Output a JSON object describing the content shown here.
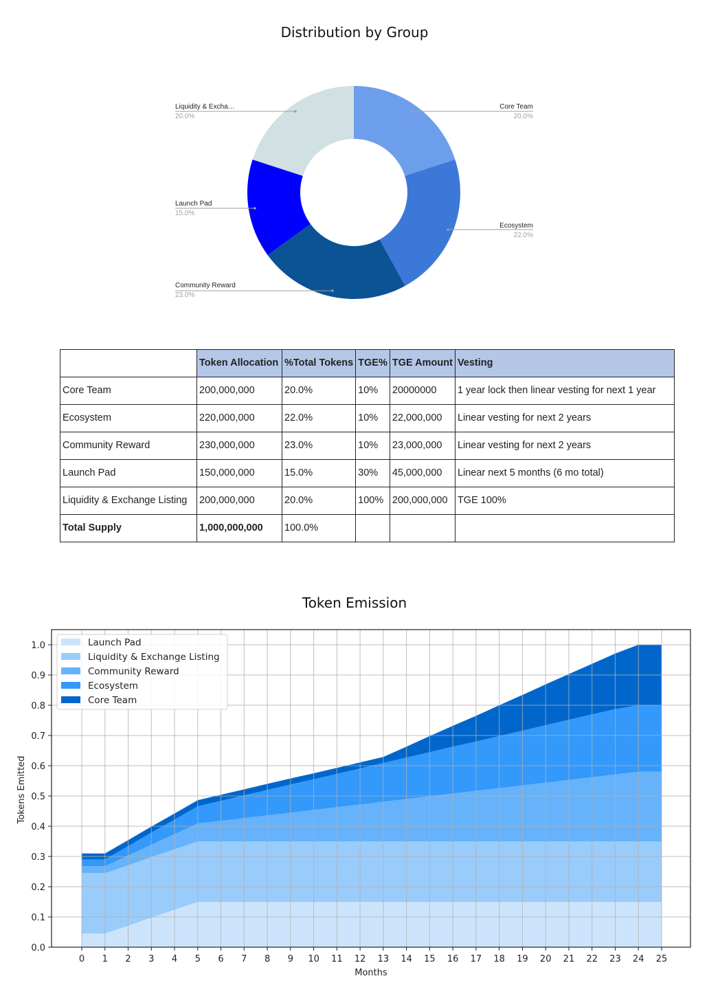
{
  "pie": {
    "title": "Distribution by Group"
  },
  "table": {
    "headers": [
      "",
      "Token Allocation",
      "%Total Tokens",
      "TGE%",
      "TGE Amount",
      "Vesting"
    ],
    "rows": [
      [
        "Core Team",
        "200,000,000",
        "20.0%",
        "10%",
        "20000000",
        "1 year lock then linear vesting for next 1 year"
      ],
      [
        "Ecosystem",
        "220,000,000",
        "22.0%",
        "10%",
        "22,000,000",
        "Linear vesting for next 2 years"
      ],
      [
        "Community Reward",
        "230,000,000",
        "23.0%",
        "10%",
        "23,000,000",
        "Linear vesting for next 2 years"
      ],
      [
        "Launch Pad",
        "150,000,000",
        "15.0%",
        "30%",
        "45,000,000",
        "Linear next 5 months (6 mo total)"
      ],
      [
        "Liquidity & Exchange Listing",
        "200,000,000",
        "20.0%",
        "100%",
        "200,000,000",
        "TGE 100%"
      ],
      [
        "Total Supply",
        "1,000,000,000",
        "100.0%",
        "",
        "",
        ""
      ]
    ]
  },
  "emission": {
    "title": "Token Emission"
  },
  "chart_data": [
    {
      "type": "pie",
      "title": "Distribution by Group",
      "donut": true,
      "categories": [
        "Core Team",
        "Ecosystem",
        "Community Reward",
        "Launch Pad",
        "Liquidity & Exchange Listing"
      ],
      "display_labels": [
        "Core Team",
        "Ecosystem",
        "Community Reward",
        "Launch Pad",
        "Liquidity & Excha…"
      ],
      "values": [
        20.0,
        22.0,
        23.0,
        15.0,
        20.0
      ],
      "value_labels": [
        "20.0%",
        "22.0%",
        "23.0%",
        "15.0%",
        "20.0%"
      ],
      "colors": [
        "#6d9eeb",
        "#3c78d8",
        "#0b5394",
        "#0000ff",
        "#d0e0e3"
      ],
      "start_angle_deg": 0,
      "direction": "clockwise"
    },
    {
      "type": "area",
      "stacked": true,
      "title": "Token Emission",
      "xlabel": "Months",
      "ylabel": "Tokens Emitted",
      "xlim": [
        -1,
        26
      ],
      "ylim": [
        0,
        1.05
      ],
      "grid": true,
      "legend_position": "upper left",
      "x": [
        0,
        1,
        2,
        3,
        4,
        5,
        6,
        7,
        8,
        9,
        10,
        11,
        12,
        13,
        14,
        15,
        16,
        17,
        18,
        19,
        20,
        21,
        22,
        23,
        24,
        25
      ],
      "xticks": [
        "0",
        "1",
        "2",
        "3",
        "4",
        "5",
        "6",
        "7",
        "8",
        "9",
        "10",
        "11",
        "12",
        "13",
        "14",
        "15",
        "16",
        "17",
        "18",
        "19",
        "20",
        "21",
        "22",
        "23",
        "24",
        "25"
      ],
      "yticks": [
        "0.0",
        "0.1",
        "0.2",
        "0.3",
        "0.4",
        "0.5",
        "0.6",
        "0.7",
        "0.8",
        "0.9",
        "1.0"
      ],
      "series": [
        {
          "name": "Launch Pad",
          "color": "#cce4fb",
          "values": [
            0.045,
            0.045,
            0.071,
            0.098,
            0.124,
            0.15,
            0.15,
            0.15,
            0.15,
            0.15,
            0.15,
            0.15,
            0.15,
            0.15,
            0.15,
            0.15,
            0.15,
            0.15,
            0.15,
            0.15,
            0.15,
            0.15,
            0.15,
            0.15,
            0.15,
            0.15
          ]
        },
        {
          "name": "Liquidity & Exchange Listing",
          "color": "#99ccfb",
          "values": [
            0.2,
            0.2,
            0.2,
            0.2,
            0.2,
            0.2,
            0.2,
            0.2,
            0.2,
            0.2,
            0.2,
            0.2,
            0.2,
            0.2,
            0.2,
            0.2,
            0.2,
            0.2,
            0.2,
            0.2,
            0.2,
            0.2,
            0.2,
            0.2,
            0.2,
            0.2
          ]
        },
        {
          "name": "Community Reward",
          "color": "#66b2fb",
          "values": [
            0.023,
            0.023,
            0.032,
            0.041,
            0.05,
            0.059,
            0.068,
            0.077,
            0.086,
            0.095,
            0.104,
            0.113,
            0.122,
            0.131,
            0.14,
            0.149,
            0.158,
            0.167,
            0.176,
            0.185,
            0.194,
            0.203,
            0.212,
            0.221,
            0.23,
            0.23
          ]
        },
        {
          "name": "Ecosystem",
          "color": "#3399fb",
          "values": [
            0.022,
            0.022,
            0.031,
            0.04,
            0.048,
            0.057,
            0.066,
            0.075,
            0.084,
            0.093,
            0.101,
            0.11,
            0.119,
            0.128,
            0.137,
            0.146,
            0.155,
            0.163,
            0.172,
            0.181,
            0.19,
            0.199,
            0.208,
            0.216,
            0.22,
            0.22
          ]
        },
        {
          "name": "Core Team",
          "color": "#0066cc",
          "values": [
            0.02,
            0.02,
            0.02,
            0.02,
            0.02,
            0.02,
            0.02,
            0.02,
            0.02,
            0.02,
            0.02,
            0.02,
            0.02,
            0.02,
            0.036,
            0.053,
            0.069,
            0.085,
            0.102,
            0.118,
            0.135,
            0.151,
            0.167,
            0.184,
            0.2,
            0.2
          ]
        }
      ]
    }
  ]
}
